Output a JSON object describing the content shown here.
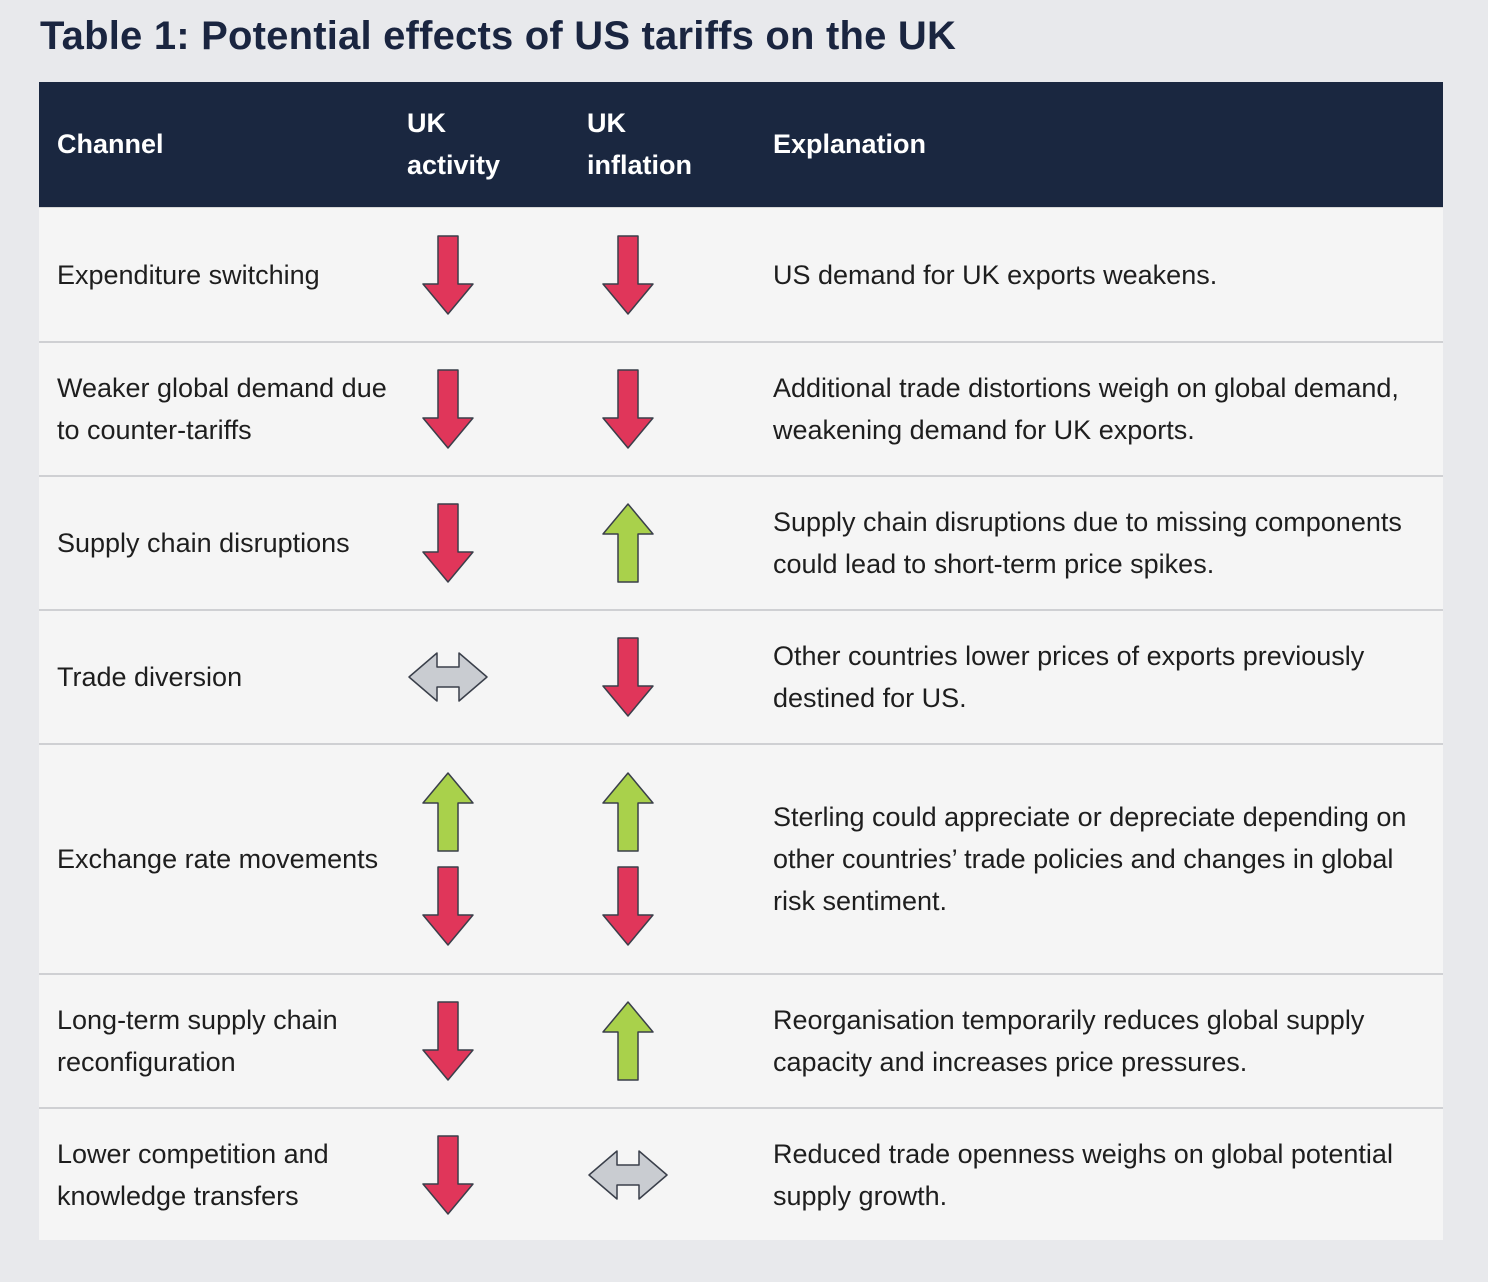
{
  "title": "Table 1: Potential effects of US tariffs on the UK",
  "header": {
    "channel": "Channel",
    "activity": "UK activity",
    "inflation": "UK inflation",
    "explanation": "Explanation"
  },
  "colors": {
    "header_bg": "#1a2740",
    "down": "#e0365a",
    "up": "#a9d14b",
    "neutral": "#c9ccd1"
  },
  "rows": [
    {
      "channel": "Expenditure switching",
      "activity": [
        "down"
      ],
      "inflation": [
        "down"
      ],
      "explanation": "US demand for UK exports weakens."
    },
    {
      "channel": "Weaker global demand due to counter-tariffs",
      "activity": [
        "down"
      ],
      "inflation": [
        "down"
      ],
      "explanation": "Additional trade distortions weigh on global demand, weakening demand for UK exports."
    },
    {
      "channel": "Supply chain disruptions",
      "activity": [
        "down"
      ],
      "inflation": [
        "up"
      ],
      "explanation": "Supply chain disruptions due to missing components could lead to short-term price spikes."
    },
    {
      "channel": "Trade diversion",
      "activity": [
        "neutral"
      ],
      "inflation": [
        "down"
      ],
      "explanation": "Other countries lower prices of exports previously destined for US."
    },
    {
      "channel": "Exchange rate movements",
      "activity": [
        "up",
        "down"
      ],
      "inflation": [
        "up",
        "down"
      ],
      "explanation": "Sterling could appreciate or depreciate depending on other countries’ trade policies and changes in global risk sentiment."
    },
    {
      "channel": "Long-term supply chain reconfiguration",
      "activity": [
        "down"
      ],
      "inflation": [
        "up"
      ],
      "explanation": "Reorganisation temporarily reduces global supply capacity and increases price pressures."
    },
    {
      "channel": "Lower competition and knowledge transfers",
      "activity": [
        "down"
      ],
      "inflation": [
        "neutral"
      ],
      "explanation": "Reduced trade openness weighs on global potential supply growth."
    }
  ]
}
